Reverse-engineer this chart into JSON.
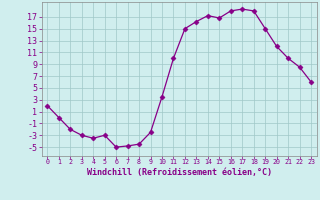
{
  "x": [
    0,
    1,
    2,
    3,
    4,
    5,
    6,
    7,
    8,
    9,
    10,
    11,
    12,
    13,
    14,
    15,
    16,
    17,
    18,
    19,
    20,
    21,
    22,
    23
  ],
  "y": [
    2,
    0,
    -2,
    -3,
    -3.5,
    -3,
    -5,
    -4.8,
    -4.5,
    -2.5,
    3.5,
    10,
    15,
    16.2,
    17.2,
    16.8,
    18,
    18.3,
    18,
    15,
    12,
    10,
    8.5,
    6
  ],
  "line_color": "#880088",
  "marker": "D",
  "marker_size": 2.5,
  "bg_color": "#d0eeee",
  "grid_color": "#a0c8c8",
  "axis_color": "#880088",
  "tick_color": "#880088",
  "xlabel": "Windchill (Refroidissement éolien,°C)",
  "xlabel_fontsize": 6.0,
  "ytick_fontsize": 6.0,
  "xtick_fontsize": 4.8,
  "yticks": [
    -5,
    -3,
    -1,
    1,
    3,
    5,
    7,
    9,
    11,
    13,
    15,
    17
  ],
  "ylim": [
    -6.5,
    19.5
  ],
  "xlim": [
    -0.5,
    23.5
  ],
  "xtick_labels": [
    "0",
    "1",
    "2",
    "3",
    "4",
    "5",
    "6",
    "7",
    "8",
    "9",
    "10",
    "11",
    "12",
    "13",
    "14",
    "15",
    "16",
    "17",
    "18",
    "19",
    "20",
    "21",
    "22",
    "23"
  ]
}
